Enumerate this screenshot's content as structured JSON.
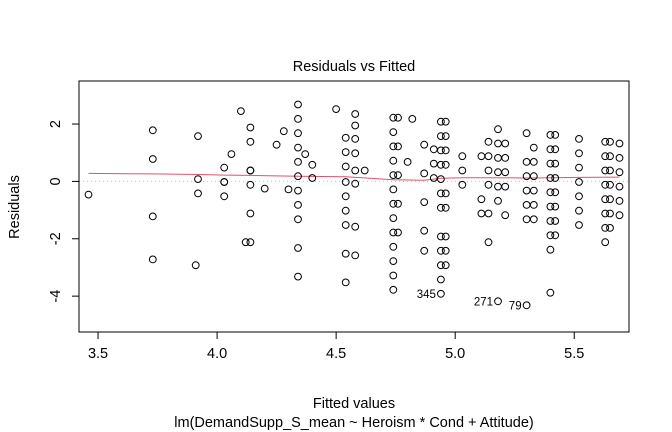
{
  "chart_data": {
    "type": "scatter",
    "title": "Residuals vs Fitted",
    "xlabel": "Fitted values",
    "sublabel": "lm(DemandSupp_S_mean ~ Heroism * Cond + Attitude)",
    "ylabel": "Residuals",
    "xlim": [
      3.42,
      5.73
    ],
    "ylim": [
      -5.25,
      3.5
    ],
    "x_ticks": [
      3.5,
      4.0,
      4.5,
      5.0,
      5.5
    ],
    "x_tick_labels": [
      "3.5",
      "4.0",
      "4.5",
      "5.0",
      "5.5"
    ],
    "y_ticks": [
      -4,
      -2,
      0,
      2
    ],
    "y_tick_labels": [
      "-4",
      "-2",
      "0",
      "2"
    ],
    "zero_line": true,
    "colors": {
      "points": "#000000",
      "smoother": "#df536b",
      "zero_line": "#bebebe"
    },
    "points": [
      [
        3.46,
        -0.46
      ],
      [
        3.73,
        1.78
      ],
      [
        3.73,
        0.78
      ],
      [
        3.73,
        -1.22
      ],
      [
        3.73,
        -2.72
      ],
      [
        3.91,
        -2.92
      ],
      [
        3.92,
        1.58
      ],
      [
        3.92,
        0.08
      ],
      [
        3.92,
        -0.42
      ],
      [
        4.03,
        0.48
      ],
      [
        4.03,
        -0.02
      ],
      [
        4.03,
        -0.02
      ],
      [
        4.03,
        -0.52
      ],
      [
        4.06,
        0.95
      ],
      [
        4.1,
        2.45
      ],
      [
        4.12,
        -2.12
      ],
      [
        4.14,
        1.88
      ],
      [
        4.14,
        1.38
      ],
      [
        4.14,
        0.38
      ],
      [
        4.14,
        0.38
      ],
      [
        4.14,
        -0.12
      ],
      [
        4.14,
        -1.12
      ],
      [
        4.14,
        -2.12
      ],
      [
        4.2,
        -0.25
      ],
      [
        4.25,
        1.28
      ],
      [
        4.28,
        1.75
      ],
      [
        4.3,
        -0.28
      ],
      [
        4.34,
        2.68
      ],
      [
        4.34,
        2.18
      ],
      [
        4.34,
        1.68
      ],
      [
        4.34,
        1.18
      ],
      [
        4.34,
        0.68
      ],
      [
        4.34,
        0.18
      ],
      [
        4.34,
        -0.32
      ],
      [
        4.34,
        -0.82
      ],
      [
        4.34,
        -1.32
      ],
      [
        4.34,
        -2.32
      ],
      [
        4.34,
        -3.32
      ],
      [
        4.37,
        0.95
      ],
      [
        4.4,
        0.58
      ],
      [
        4.4,
        0.12
      ],
      [
        4.5,
        2.52
      ],
      [
        4.54,
        1.52
      ],
      [
        4.54,
        1.02
      ],
      [
        4.54,
        0.52
      ],
      [
        4.54,
        -0.02
      ],
      [
        4.54,
        -0.52
      ],
      [
        4.54,
        -1.02
      ],
      [
        4.54,
        -1.52
      ],
      [
        4.54,
        -2.52
      ],
      [
        4.54,
        -3.52
      ],
      [
        4.58,
        2.35
      ],
      [
        4.58,
        1.95
      ],
      [
        4.58,
        1.48
      ],
      [
        4.58,
        0.98
      ],
      [
        4.58,
        0.38
      ],
      [
        4.58,
        -0.08
      ],
      [
        4.58,
        -1.58
      ],
      [
        4.58,
        -2.58
      ],
      [
        4.62,
        0.38
      ],
      [
        4.74,
        2.22
      ],
      [
        4.74,
        1.72
      ],
      [
        4.74,
        1.22
      ],
      [
        4.74,
        0.72
      ],
      [
        4.74,
        0.22
      ],
      [
        4.74,
        -0.28
      ],
      [
        4.74,
        -0.78
      ],
      [
        4.74,
        -1.28
      ],
      [
        4.74,
        -1.78
      ],
      [
        4.74,
        -2.28
      ],
      [
        4.74,
        -2.78
      ],
      [
        4.74,
        -3.28
      ],
      [
        4.74,
        -3.78
      ],
      [
        4.76,
        2.22
      ],
      [
        4.76,
        1.22
      ],
      [
        4.76,
        0.22
      ],
      [
        4.76,
        -0.78
      ],
      [
        4.76,
        -1.78
      ],
      [
        4.8,
        0.68
      ],
      [
        4.82,
        2.18
      ],
      [
        4.87,
        1.28
      ],
      [
        4.87,
        0.28
      ],
      [
        4.87,
        -0.72
      ],
      [
        4.87,
        -1.72
      ],
      [
        4.87,
        -2.42
      ],
      [
        4.91,
        1.12
      ],
      [
        4.91,
        0.62
      ],
      [
        4.91,
        0.12
      ],
      [
        4.94,
        2.08
      ],
      [
        4.94,
        1.58
      ],
      [
        4.94,
        1.08
      ],
      [
        4.94,
        0.58
      ],
      [
        4.94,
        0.08
      ],
      [
        4.94,
        -0.42
      ],
      [
        4.94,
        -0.92
      ],
      [
        4.94,
        -1.92
      ],
      [
        4.94,
        -2.42
      ],
      [
        4.94,
        -2.92
      ],
      [
        4.94,
        -3.42
      ],
      [
        4.94,
        -3.92
      ],
      [
        4.96,
        2.08
      ],
      [
        4.96,
        1.58
      ],
      [
        4.96,
        1.08
      ],
      [
        4.96,
        0.58
      ],
      [
        4.96,
        -0.42
      ],
      [
        4.96,
        -0.92
      ],
      [
        4.96,
        -1.92
      ],
      [
        4.96,
        -2.42
      ],
      [
        4.96,
        -2.92
      ],
      [
        5.03,
        0.88
      ],
      [
        5.03,
        0.38
      ],
      [
        5.03,
        -0.12
      ],
      [
        5.11,
        0.88
      ],
      [
        5.11,
        -0.62
      ],
      [
        5.11,
        -1.12
      ],
      [
        5.14,
        1.38
      ],
      [
        5.14,
        0.88
      ],
      [
        5.14,
        0.38
      ],
      [
        5.14,
        -0.12
      ],
      [
        5.14,
        -1.12
      ],
      [
        5.14,
        -2.12
      ],
      [
        5.18,
        1.82
      ],
      [
        5.18,
        1.32
      ],
      [
        5.18,
        0.82
      ],
      [
        5.18,
        0.32
      ],
      [
        5.18,
        -0.18
      ],
      [
        5.18,
        -0.68
      ],
      [
        5.18,
        -4.18
      ],
      [
        5.21,
        1.32
      ],
      [
        5.21,
        0.82
      ],
      [
        5.21,
        0.32
      ],
      [
        5.21,
        -0.18
      ],
      [
        5.21,
        -1.18
      ],
      [
        5.3,
        1.68
      ],
      [
        5.3,
        0.68
      ],
      [
        5.3,
        0.18
      ],
      [
        5.3,
        -0.32
      ],
      [
        5.3,
        -0.82
      ],
      [
        5.3,
        -1.32
      ],
      [
        5.3,
        -4.32
      ],
      [
        5.33,
        1.18
      ],
      [
        5.33,
        0.68
      ],
      [
        5.33,
        0.18
      ],
      [
        5.33,
        -0.32
      ],
      [
        5.33,
        -0.82
      ],
      [
        5.33,
        -1.32
      ],
      [
        5.4,
        1.62
      ],
      [
        5.4,
        1.12
      ],
      [
        5.4,
        0.62
      ],
      [
        5.4,
        0.12
      ],
      [
        5.4,
        -0.38
      ],
      [
        5.4,
        -0.88
      ],
      [
        5.4,
        -1.38
      ],
      [
        5.4,
        -1.88
      ],
      [
        5.4,
        -2.38
      ],
      [
        5.4,
        -3.88
      ],
      [
        5.42,
        1.62
      ],
      [
        5.42,
        1.12
      ],
      [
        5.42,
        0.62
      ],
      [
        5.42,
        0.12
      ],
      [
        5.42,
        -0.38
      ],
      [
        5.42,
        -0.88
      ],
      [
        5.42,
        -1.38
      ],
      [
        5.42,
        -1.88
      ],
      [
        5.52,
        1.48
      ],
      [
        5.52,
        0.98
      ],
      [
        5.52,
        0.48
      ],
      [
        5.52,
        -0.02
      ],
      [
        5.52,
        -0.52
      ],
      [
        5.52,
        -1.02
      ],
      [
        5.52,
        -1.52
      ],
      [
        5.63,
        1.38
      ],
      [
        5.63,
        0.88
      ],
      [
        5.63,
        0.38
      ],
      [
        5.63,
        -0.12
      ],
      [
        5.63,
        -0.62
      ],
      [
        5.63,
        -1.12
      ],
      [
        5.63,
        -1.62
      ],
      [
        5.63,
        -2.12
      ],
      [
        5.65,
        1.38
      ],
      [
        5.65,
        0.88
      ],
      [
        5.65,
        0.38
      ],
      [
        5.65,
        -0.12
      ],
      [
        5.65,
        -0.62
      ],
      [
        5.65,
        -1.12
      ],
      [
        5.65,
        -1.62
      ],
      [
        5.69,
        1.32
      ],
      [
        5.69,
        0.82
      ],
      [
        5.69,
        0.32
      ],
      [
        5.69,
        -0.18
      ],
      [
        5.69,
        -0.68
      ],
      [
        5.69,
        -1.18
      ]
    ],
    "smoother": [
      [
        3.46,
        0.28
      ],
      [
        3.73,
        0.26
      ],
      [
        3.92,
        0.24
      ],
      [
        4.03,
        0.22
      ],
      [
        4.14,
        0.21
      ],
      [
        4.34,
        0.18
      ],
      [
        4.54,
        0.16
      ],
      [
        4.74,
        0.06
      ],
      [
        4.87,
        0.04
      ],
      [
        4.94,
        0.11
      ],
      [
        5.03,
        0.13
      ],
      [
        5.18,
        0.13
      ],
      [
        5.3,
        0.12
      ],
      [
        5.42,
        0.13
      ],
      [
        5.52,
        0.14
      ],
      [
        5.69,
        0.15
      ]
    ],
    "annotations": [
      {
        "label": "345",
        "x": 4.94,
        "y": -3.92
      },
      {
        "label": "271",
        "x": 5.18,
        "y": -4.18
      },
      {
        "label": "79",
        "x": 5.3,
        "y": -4.32
      }
    ]
  }
}
